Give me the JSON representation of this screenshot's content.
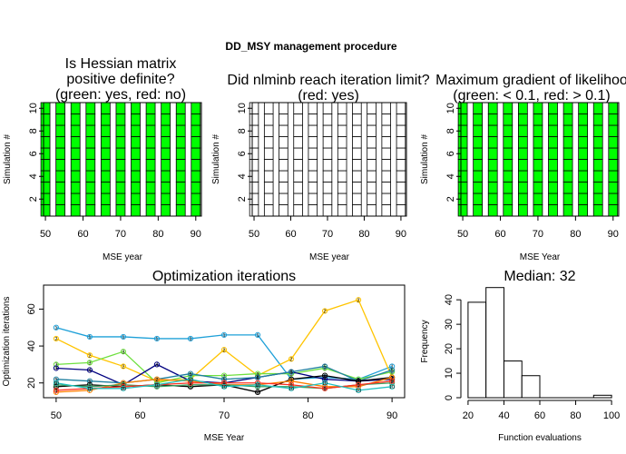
{
  "figure": {
    "title": "DD_MSY management procedure"
  },
  "chart_data": [
    {
      "type": "heatmap",
      "title": [
        "Is Hessian matrix",
        "positive definite?",
        "(green: yes, red: no)"
      ],
      "xlabel": "MSE year",
      "ylabel": "Simulation #",
      "x_ticks": [
        50,
        60,
        70,
        80,
        90
      ],
      "y_ticks": [
        2,
        4,
        6,
        8,
        10
      ],
      "xlim": [
        49.5,
        91.5
      ],
      "ylim": [
        0.5,
        10.5
      ],
      "years": [
        50,
        54,
        58,
        62,
        66,
        70,
        74,
        78,
        82,
        86,
        90
      ],
      "n_sims": 10,
      "cell_color": "#00ff00",
      "colors": {
        "green": "#00ff00",
        "red": "#ff0000"
      }
    },
    {
      "type": "heatmap",
      "title": [
        "Did nlminb reach iteration limit?",
        "(red: yes)"
      ],
      "xlabel": "MSE year",
      "ylabel": "Simulation #",
      "x_ticks": [
        50,
        60,
        70,
        80,
        90
      ],
      "y_ticks": [
        2,
        4,
        6,
        8,
        10
      ],
      "xlim": [
        49.5,
        91.5
      ],
      "ylim": [
        0.5,
        10.5
      ],
      "years": [
        50,
        54,
        58,
        62,
        66,
        70,
        74,
        78,
        82,
        86,
        90
      ],
      "n_sims": 10,
      "cell_color": "#ffffff",
      "colors": {
        "red": "#ff0000"
      }
    },
    {
      "type": "heatmap",
      "title": [
        "Maximum gradient of likelihoo",
        "(green: < 0.1, red: > 0.1)"
      ],
      "xlabel": "MSE Year",
      "ylabel": "Simulation #",
      "x_ticks": [
        50,
        60,
        70,
        80,
        90
      ],
      "y_ticks": [
        2,
        4,
        6,
        8,
        10
      ],
      "xlim": [
        49.5,
        91.5
      ],
      "ylim": [
        0.5,
        10.5
      ],
      "years": [
        50,
        54,
        58,
        62,
        66,
        70,
        74,
        78,
        82,
        86,
        90
      ],
      "n_sims": 10,
      "cell_color": "#00ff00",
      "colors": {
        "green": "#00ff00",
        "red": "#ff0000"
      }
    },
    {
      "type": "line",
      "title": "Optimization iterations",
      "xlabel": "MSE Year",
      "ylabel": "Optimization iterations",
      "x": [
        50,
        54,
        58,
        62,
        66,
        70,
        74,
        78,
        82,
        86,
        90
      ],
      "x_ticks": [
        50,
        60,
        70,
        80,
        90
      ],
      "y_ticks": [
        20,
        40,
        60
      ],
      "xlim": [
        48.5,
        91.5
      ],
      "ylim": [
        12,
        73
      ],
      "series": [
        {
          "color": "#1ea0d8",
          "values": [
            50,
            45,
            45,
            44,
            44,
            46,
            46,
            22,
            23,
            22,
            29
          ]
        },
        {
          "color": "#ffc400",
          "values": [
            44,
            35,
            29,
            21,
            22,
            38,
            24,
            33,
            59,
            65,
            23
          ]
        },
        {
          "color": "#6fe040",
          "values": [
            30,
            31,
            37,
            20,
            24,
            24,
            25,
            25,
            28,
            22,
            26
          ]
        },
        {
          "color": "#000080",
          "values": [
            28,
            27,
            19,
            30,
            21,
            20,
            23,
            26,
            22,
            21,
            22
          ]
        },
        {
          "color": "#2080a0",
          "values": [
            22,
            21,
            20,
            22,
            25,
            22,
            23,
            26,
            29,
            21,
            27
          ]
        },
        {
          "color": "#000000",
          "values": [
            18,
            19,
            18,
            19,
            18,
            19,
            15,
            22,
            24,
            21,
            23
          ]
        },
        {
          "color": "#ff8000",
          "values": [
            15,
            16,
            20,
            22,
            21,
            19,
            19,
            21,
            18,
            18,
            23
          ]
        },
        {
          "color": "#3aa060",
          "values": [
            19,
            18,
            19,
            18,
            19,
            19,
            18,
            18,
            17,
            19,
            20
          ]
        },
        {
          "color": "#ff3020",
          "values": [
            16,
            17,
            18,
            19,
            20,
            20,
            20,
            19,
            17,
            19,
            21
          ]
        },
        {
          "color": "#20c0c0",
          "values": [
            20,
            17,
            17,
            19,
            22,
            18,
            19,
            17,
            20,
            16,
            18
          ]
        }
      ]
    },
    {
      "type": "bar",
      "subtype": "histogram",
      "title": "Median: 32",
      "xlabel": "Function evaluations",
      "ylabel": "Frequency",
      "bin_edges": [
        20,
        30,
        40,
        50,
        60,
        70,
        80,
        90,
        100
      ],
      "values": [
        39,
        45,
        15,
        9,
        0,
        0,
        0,
        1
      ],
      "x_ticks": [
        20,
        40,
        60,
        80,
        100
      ],
      "y_ticks": [
        0,
        10,
        20,
        30,
        40
      ],
      "xlim": [
        16,
        104
      ],
      "ylim": [
        0,
        46
      ]
    }
  ]
}
